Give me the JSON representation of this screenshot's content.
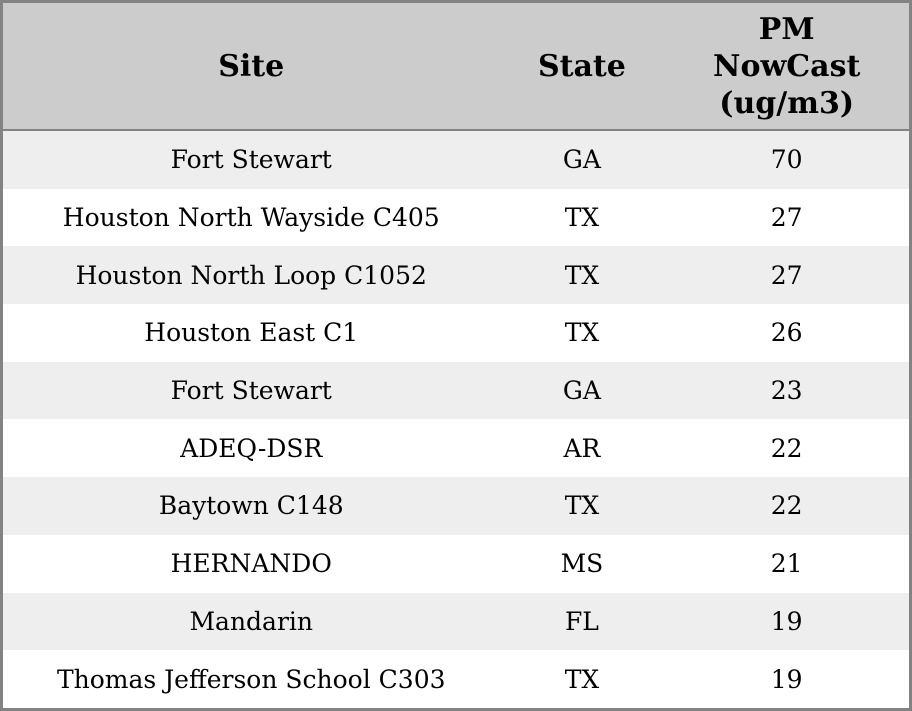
{
  "colors": {
    "header_bg": "#cccccc",
    "row_stripe": "#eeeeee",
    "row_plain": "#ffffff",
    "border": "#838383",
    "text": "#000000"
  },
  "table": {
    "headers": {
      "site": "Site",
      "state": "State",
      "pm": "PM\nNowCast\n(ug/m3)"
    },
    "rows": [
      {
        "site": "Fort Stewart",
        "state": "GA",
        "pm": "70"
      },
      {
        "site": "Houston North Wayside C405",
        "state": "TX",
        "pm": "27"
      },
      {
        "site": "Houston North Loop C1052",
        "state": "TX",
        "pm": "27"
      },
      {
        "site": "Houston East C1",
        "state": "TX",
        "pm": "26"
      },
      {
        "site": "Fort Stewart",
        "state": "GA",
        "pm": "23"
      },
      {
        "site": "ADEQ-DSR",
        "state": "AR",
        "pm": "22"
      },
      {
        "site": "Baytown C148",
        "state": "TX",
        "pm": "22"
      },
      {
        "site": "HERNANDO",
        "state": "MS",
        "pm": "21"
      },
      {
        "site": "Mandarin",
        "state": "FL",
        "pm": "19"
      },
      {
        "site": "Thomas Jefferson School C303",
        "state": "TX",
        "pm": "19"
      }
    ]
  },
  "chart_data": {
    "type": "table",
    "title": "",
    "columns": [
      "Site",
      "State",
      "PM NowCast (ug/m3)"
    ],
    "rows": [
      [
        "Fort Stewart",
        "GA",
        70
      ],
      [
        "Houston North Wayside C405",
        "TX",
        27
      ],
      [
        "Houston North Loop C1052",
        "TX",
        27
      ],
      [
        "Houston East C1",
        "TX",
        26
      ],
      [
        "Fort Stewart",
        "GA",
        23
      ],
      [
        "ADEQ-DSR",
        "AR",
        22
      ],
      [
        "Baytown C148",
        "TX",
        22
      ],
      [
        "HERNANDO",
        "MS",
        21
      ],
      [
        "Mandarin",
        "FL",
        19
      ],
      [
        "Thomas Jefferson School C303",
        "TX",
        19
      ]
    ]
  }
}
